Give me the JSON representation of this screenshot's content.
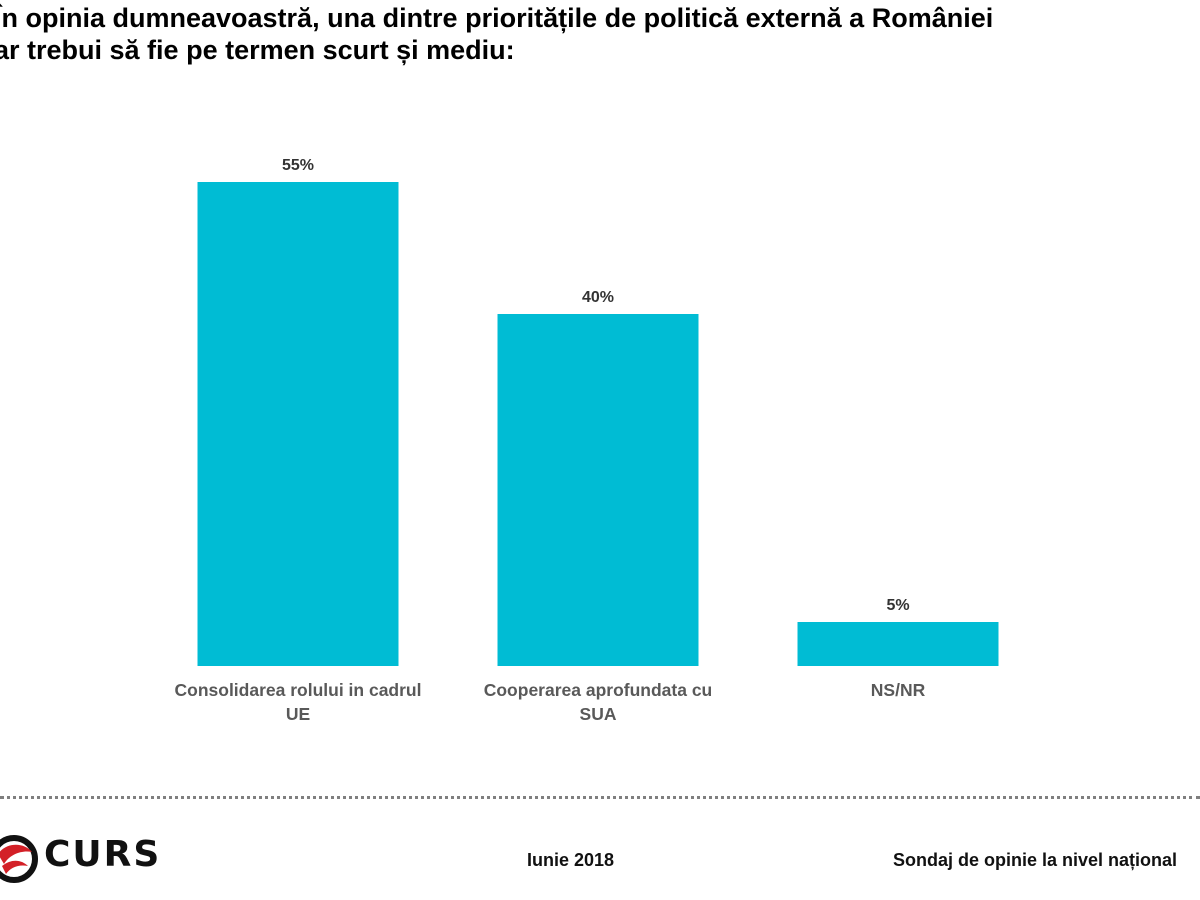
{
  "title_lines": [
    "În opinia dumneavoastră, una dintre prioritățile de politică externă a României",
    "ar trebui să fie pe termen scurt și mediu:"
  ],
  "chart_data": {
    "type": "bar",
    "title": "În opinia dumneavoastră, una dintre prioritățile de politică externă a României ar trebui să fie pe termen scurt și mediu:",
    "categories": [
      [
        "Consolidarea rolului in cadrul",
        "UE"
      ],
      [
        "Cooperarea aprofundata cu",
        "SUA"
      ],
      [
        "NS/NR"
      ]
    ],
    "values": [
      55,
      40,
      5
    ],
    "value_labels": [
      "55%",
      "40%",
      "5%"
    ],
    "unit": "%",
    "ylim": [
      0,
      55
    ],
    "grid": false,
    "legend": "none",
    "bar_color": "#00bcd4"
  },
  "footer": {
    "logo_text": "CURS",
    "date": "Iunie 2018",
    "note": "Sondaj de opinie la nivel național"
  },
  "colors": {
    "logo_red": "#d32027",
    "divider": "#7f7f7f"
  }
}
